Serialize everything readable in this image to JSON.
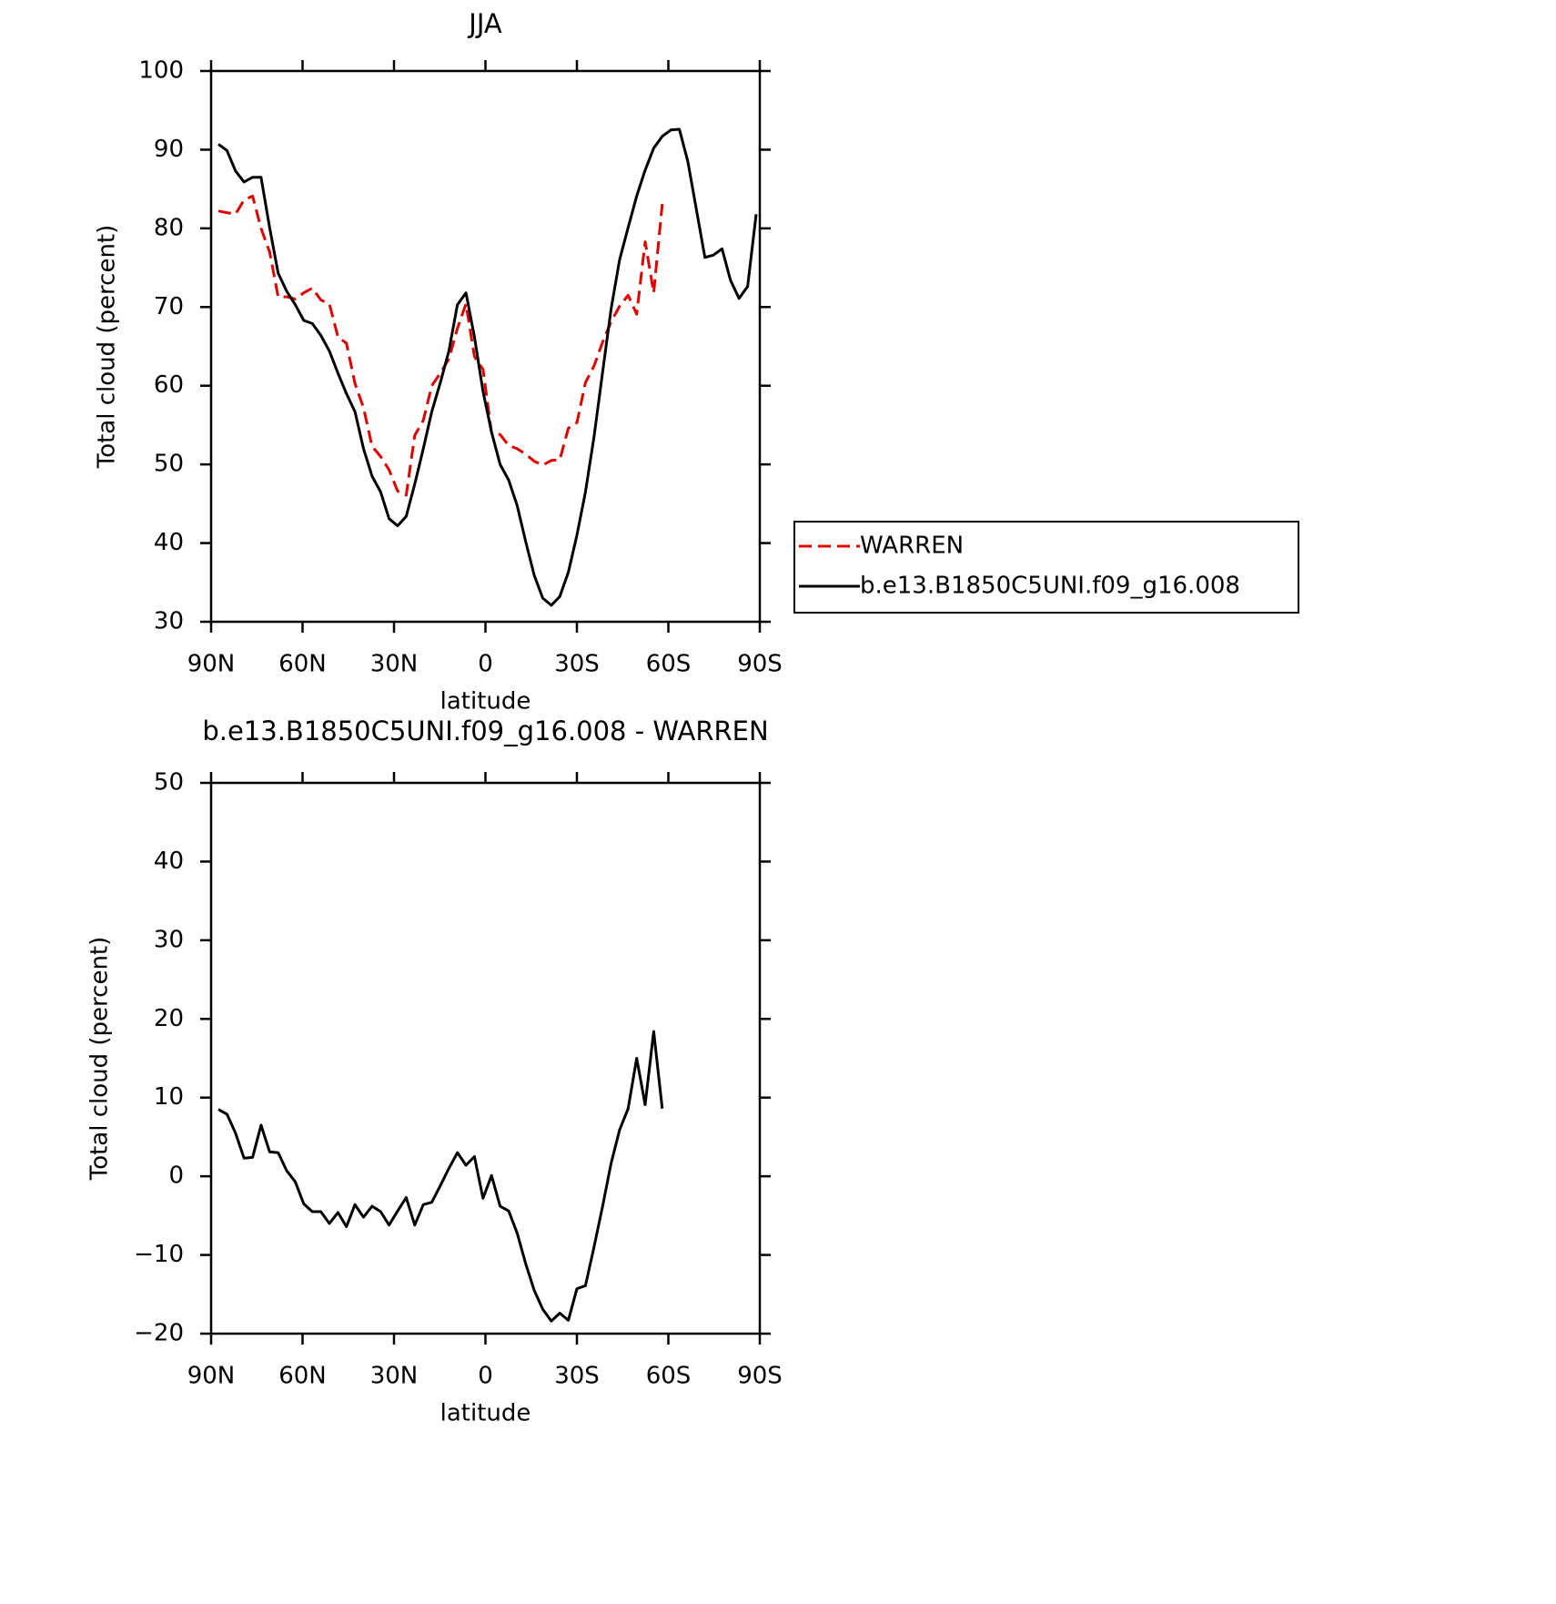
{
  "chart_data": [
    {
      "type": "line",
      "title": "JJA",
      "xlabel": "latitude",
      "ylabel": "Total cloud (percent)",
      "xlim": [
        90,
        -90
      ],
      "xticks": [
        {
          "value": 90,
          "label": "90N"
        },
        {
          "value": 60,
          "label": "60N"
        },
        {
          "value": 30,
          "label": "30N"
        },
        0,
        {
          "value": -30,
          "label": "30S"
        },
        {
          "value": -60,
          "label": "60S"
        },
        {
          "value": -90,
          "label": "90S"
        }
      ],
      "ylim": [
        30,
        100
      ],
      "yticks": [
        30,
        40,
        50,
        60,
        70,
        80,
        90,
        100
      ],
      "legend": "right",
      "x": [
        87.6,
        84.8,
        82.0,
        79.2,
        76.4,
        73.6,
        70.8,
        68.0,
        65.2,
        62.4,
        59.6,
        56.8,
        54.0,
        51.2,
        48.4,
        45.6,
        42.8,
        40.0,
        37.2,
        34.4,
        31.6,
        28.8,
        26.0,
        23.2,
        20.4,
        17.6,
        14.8,
        12.0,
        9.2,
        6.4,
        3.6,
        0.8,
        -2.0,
        -4.8,
        -7.6,
        -10.4,
        -13.2,
        -16.0,
        -18.8,
        -21.6,
        -24.4,
        -27.2,
        -30.0,
        -32.8,
        -35.6,
        -38.4,
        -41.2,
        -44.0,
        -46.8,
        -49.6,
        -52.4,
        -55.2,
        -58.0,
        -60.8,
        -63.6,
        -66.4,
        -69.2,
        -72.0,
        -74.8,
        -77.6,
        -80.4,
        -83.2,
        -86.0,
        -88.8
      ],
      "series": [
        {
          "name": "WARREN",
          "color": "#e00000",
          "linestyle": "dashed",
          "values": [
            82.2,
            82.0,
            81.8,
            83.6,
            84.1,
            80.0,
            77.0,
            71.3,
            71.3,
            71.0,
            71.8,
            72.4,
            70.9,
            70.4,
            66.2,
            65.4,
            60.3,
            57.2,
            52.3,
            51.0,
            49.3,
            46.6,
            46.1,
            53.7,
            55.6,
            60.0,
            61.6,
            63.4,
            67.3,
            70.4,
            63.7,
            62.1,
            54.0,
            53.8,
            52.4,
            52.0,
            51.3,
            50.4,
            49.9,
            50.5,
            50.6,
            54.6,
            55.3,
            60.4,
            62.5,
            65.5,
            68.1,
            70.1,
            71.5,
            69.1,
            78.3,
            71.8,
            83.1,
            null,
            null,
            null,
            null,
            null,
            null,
            null,
            null,
            null,
            null,
            null
          ]
        },
        {
          "name": "b.e13.B1850C5UNI.f09_g16.008",
          "color": "#000000",
          "linestyle": "solid",
          "values": [
            90.7,
            89.9,
            87.3,
            85.9,
            86.5,
            86.5,
            80.1,
            74.3,
            72.0,
            70.3,
            68.3,
            67.9,
            66.4,
            64.4,
            61.6,
            59.0,
            56.7,
            52.0,
            48.5,
            46.5,
            43.1,
            42.2,
            43.4,
            47.5,
            52.0,
            56.7,
            60.4,
            64.4,
            70.3,
            71.8,
            66.2,
            59.3,
            54.1,
            50.0,
            48.0,
            44.8,
            40.2,
            35.9,
            33.0,
            32.1,
            33.2,
            36.3,
            41.0,
            46.5,
            53.5,
            61.6,
            69.7,
            76.0,
            80.1,
            84.1,
            87.4,
            90.2,
            91.7,
            92.5,
            92.6,
            88.5,
            82.4,
            76.3,
            76.6,
            77.4,
            73.4,
            71.1,
            72.6,
            81.8
          ]
        }
      ]
    },
    {
      "type": "line",
      "title": "b.e13.B1850C5UNI.f09_g16.008 - WARREN",
      "xlabel": "latitude",
      "ylabel": "Total cloud (percent)",
      "xlim": [
        90,
        -90
      ],
      "xticks": [
        {
          "value": 90,
          "label": "90N"
        },
        {
          "value": 60,
          "label": "60N"
        },
        {
          "value": 30,
          "label": "30N"
        },
        0,
        {
          "value": -30,
          "label": "30S"
        },
        {
          "value": -60,
          "label": "60S"
        },
        {
          "value": -90,
          "label": "90S"
        }
      ],
      "ylim": [
        -20,
        50
      ],
      "yticks": [
        {
          "value": -20,
          "label": "−20"
        },
        {
          "value": -10,
          "label": "−10"
        },
        0,
        10,
        20,
        30,
        40,
        50
      ],
      "x": [
        87.6,
        84.8,
        82.0,
        79.2,
        76.4,
        73.6,
        70.8,
        68.0,
        65.2,
        62.4,
        59.6,
        56.8,
        54.0,
        51.2,
        48.4,
        45.6,
        42.8,
        40.0,
        37.2,
        34.4,
        31.6,
        28.8,
        26.0,
        23.2,
        20.4,
        17.6,
        14.8,
        12.0,
        9.2,
        6.4,
        3.6,
        0.8,
        -2.0,
        -4.8,
        -7.6,
        -10.4,
        -13.2,
        -16.0,
        -18.8,
        -21.6,
        -24.4,
        -27.2,
        -30.0,
        -32.8,
        -35.6,
        -38.4,
        -41.2,
        -44.0,
        -46.8,
        -49.6,
        -52.4,
        -55.2,
        -58.0
      ],
      "series": [
        {
          "color": "#000000",
          "linestyle": "solid",
          "values": [
            8.5,
            7.9,
            5.5,
            2.3,
            2.4,
            6.5,
            3.1,
            3.0,
            0.7,
            -0.7,
            -3.5,
            -4.5,
            -4.5,
            -6.0,
            -4.6,
            -6.4,
            -3.6,
            -5.2,
            -3.8,
            -4.5,
            -6.2,
            -4.4,
            -2.7,
            -6.2,
            -3.6,
            -3.3,
            -1.2,
            1.0,
            3.0,
            1.4,
            2.5,
            -2.8,
            0.1,
            -3.8,
            -4.4,
            -7.2,
            -11.1,
            -14.5,
            -16.9,
            -18.4,
            -17.4,
            -18.3,
            -14.3,
            -13.9,
            -9.0,
            -3.9,
            1.6,
            5.9,
            8.6,
            15.0,
            9.1,
            18.4,
            8.6
          ]
        }
      ]
    }
  ]
}
